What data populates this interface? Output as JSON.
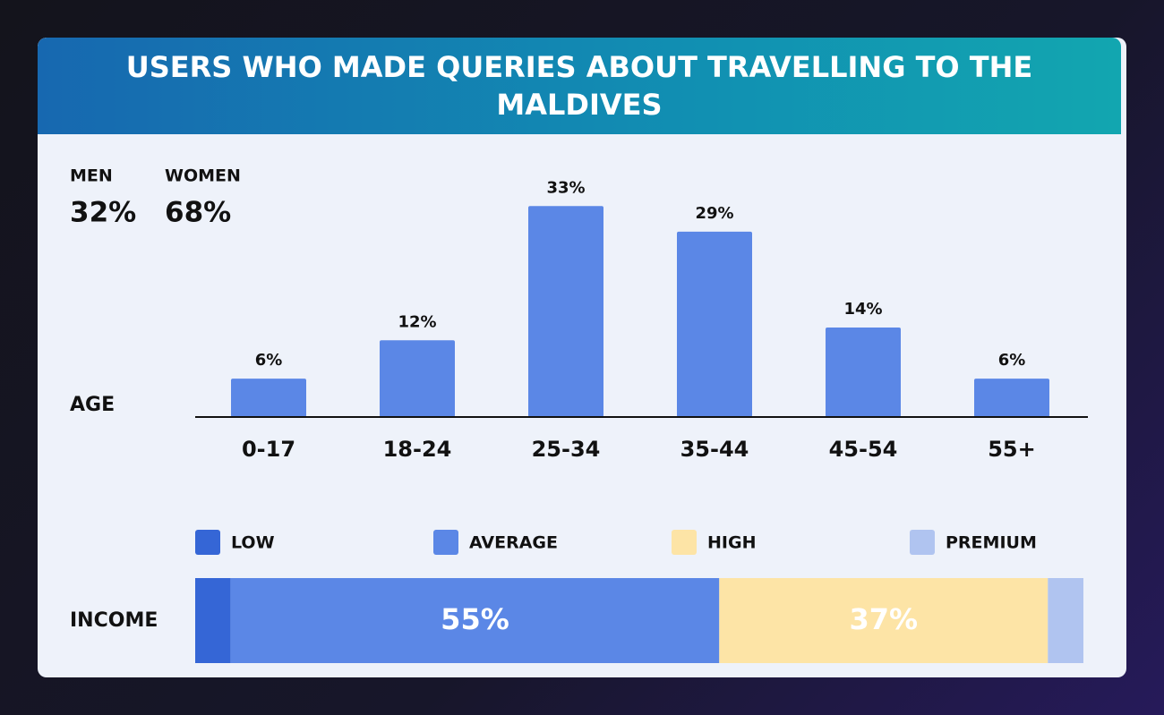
{
  "chart_data": [
    {
      "type": "bar",
      "title": "USERS WHO MADE QUERIES ABOUT TRAVELLING TO THE MALDIVES",
      "axis_label": "AGE",
      "gender": [
        {
          "label": "MEN",
          "share": "32%"
        },
        {
          "label": "WOMEN",
          "share": "68%"
        }
      ],
      "categories": [
        "0-17",
        "18-24",
        "25-34",
        "35-44",
        "45-54",
        "55+"
      ],
      "values": [
        6,
        12,
        33,
        29,
        14,
        6
      ],
      "value_labels": [
        "6%",
        "12%",
        "33%",
        "29%",
        "14%",
        "6%"
      ],
      "color": "#5b87e6",
      "ylim": [
        0,
        35
      ]
    },
    {
      "type": "stacked_bar",
      "axis_label": "INCOME",
      "xlim": [
        0,
        100
      ],
      "series": [
        {
          "name": "LOW",
          "color": "#3566d6",
          "values": [
            4
          ]
        },
        {
          "name": "AVERAGE",
          "color": "#5b87e6",
          "values": [
            55
          ],
          "value_labels": [
            "55%"
          ]
        },
        {
          "name": "HIGH",
          "color": "#fde4a6",
          "values": [
            37
          ],
          "value_labels": [
            "37%"
          ]
        },
        {
          "name": "PREMIUM",
          "color": "#b0c4f0",
          "values": [
            4
          ]
        }
      ]
    }
  ]
}
